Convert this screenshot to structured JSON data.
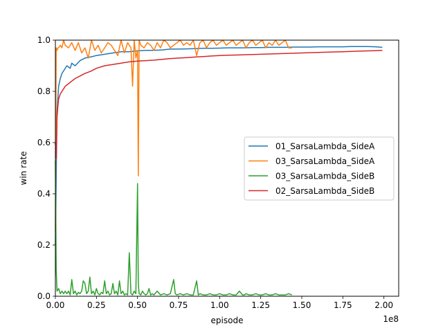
{
  "chart_data": {
    "type": "line",
    "title": "",
    "xlabel": "episode",
    "ylabel": "win rate",
    "x_offset_label": "1e8",
    "xlim": [
      0,
      2.09
    ],
    "ylim": [
      0,
      1.0
    ],
    "x_tick_values": [
      0,
      0.25,
      0.5,
      0.75,
      1.0,
      1.25,
      1.5,
      1.75,
      2.0
    ],
    "x_tick_labels": [
      "0.00",
      "0.25",
      "0.50",
      "0.75",
      "1.00",
      "1.25",
      "1.50",
      "1.75",
      "2.00"
    ],
    "y_tick_values": [
      0,
      0.2,
      0.4,
      0.6,
      0.8,
      1.0
    ],
    "y_tick_labels": [
      "0.0",
      "0.2",
      "0.4",
      "0.6",
      "0.8",
      "1.0"
    ],
    "grid": false,
    "legend_position": "center-right",
    "series": [
      {
        "name": "01_SarsaLambda_SideA",
        "color": "#1f77b4",
        "x": [
          0.0,
          0.01,
          0.02,
          0.03,
          0.04,
          0.05,
          0.07,
          0.09,
          0.1,
          0.12,
          0.15,
          0.18,
          0.22,
          0.25,
          0.3,
          0.35,
          0.4,
          0.45,
          0.5,
          0.55,
          0.6,
          0.65,
          0.7,
          0.75,
          0.8,
          0.85,
          0.9,
          0.95,
          1.0,
          1.05,
          1.1,
          1.15,
          1.2,
          1.25,
          1.3,
          1.35,
          1.4,
          1.45,
          1.5,
          1.55,
          1.6,
          1.65,
          1.7,
          1.75,
          1.8,
          1.85,
          1.9,
          1.95,
          1.99
        ],
        "y": [
          0.2,
          0.72,
          0.82,
          0.85,
          0.87,
          0.88,
          0.9,
          0.89,
          0.91,
          0.9,
          0.92,
          0.93,
          0.935,
          0.94,
          0.945,
          0.95,
          0.955,
          0.955,
          0.958,
          0.96,
          0.96,
          0.962,
          0.965,
          0.965,
          0.966,
          0.967,
          0.968,
          0.968,
          0.969,
          0.97,
          0.97,
          0.97,
          0.971,
          0.971,
          0.972,
          0.972,
          0.972,
          0.973,
          0.973,
          0.973,
          0.974,
          0.974,
          0.974,
          0.974,
          0.975,
          0.975,
          0.975,
          0.974,
          0.972
        ]
      },
      {
        "name": "03_SarsaLambda_SideA",
        "color": "#ff7f0e",
        "x": [
          0.0,
          0.005,
          0.01,
          0.015,
          0.02,
          0.03,
          0.04,
          0.05,
          0.06,
          0.08,
          0.1,
          0.12,
          0.14,
          0.16,
          0.18,
          0.2,
          0.22,
          0.24,
          0.26,
          0.28,
          0.3,
          0.32,
          0.34,
          0.36,
          0.38,
          0.4,
          0.42,
          0.44,
          0.46,
          0.47,
          0.48,
          0.49,
          0.5,
          0.505,
          0.51,
          0.52,
          0.54,
          0.56,
          0.58,
          0.6,
          0.62,
          0.64,
          0.66,
          0.68,
          0.7,
          0.72,
          0.74,
          0.76,
          0.78,
          0.8,
          0.82,
          0.84,
          0.86,
          0.88,
          0.9,
          0.92,
          0.94,
          0.96,
          0.98,
          1.0,
          1.02,
          1.04,
          1.06,
          1.08,
          1.1,
          1.12,
          1.14,
          1.16,
          1.18,
          1.2,
          1.22,
          1.24,
          1.26,
          1.28,
          1.3,
          1.32,
          1.34,
          1.36,
          1.38,
          1.4,
          1.42,
          1.44
        ],
        "y": [
          0.25,
          0.97,
          0.96,
          0.97,
          0.97,
          0.98,
          0.97,
          1.0,
          0.98,
          0.97,
          0.99,
          0.96,
          0.99,
          0.95,
          0.97,
          0.93,
          1.0,
          0.96,
          0.98,
          0.95,
          0.97,
          0.99,
          0.98,
          0.96,
          0.94,
          1.0,
          0.95,
          0.99,
          0.97,
          0.82,
          1.0,
          0.93,
          0.96,
          0.47,
          1.0,
          0.98,
          0.97,
          0.99,
          0.98,
          0.96,
          0.99,
          0.97,
          1.0,
          0.99,
          0.97,
          0.98,
          0.99,
          1.0,
          0.98,
          0.99,
          0.98,
          1.0,
          0.94,
          0.99,
          1.0,
          0.97,
          0.99,
          1.0,
          0.98,
          0.99,
          1.0,
          0.98,
          0.99,
          1.0,
          0.98,
          0.99,
          1.0,
          0.97,
          0.99,
          1.0,
          0.98,
          0.99,
          1.0,
          0.97,
          0.99,
          0.98,
          1.0,
          0.98,
          0.99,
          1.0,
          0.97,
          0.97
        ]
      },
      {
        "name": "03_SarsaLambda_SideB",
        "color": "#2ca02c",
        "x": [
          0.0,
          0.005,
          0.01,
          0.02,
          0.03,
          0.04,
          0.05,
          0.06,
          0.07,
          0.08,
          0.09,
          0.1,
          0.11,
          0.12,
          0.13,
          0.14,
          0.15,
          0.16,
          0.17,
          0.18,
          0.19,
          0.2,
          0.21,
          0.22,
          0.23,
          0.24,
          0.25,
          0.26,
          0.27,
          0.28,
          0.29,
          0.3,
          0.31,
          0.32,
          0.33,
          0.34,
          0.35,
          0.36,
          0.37,
          0.38,
          0.39,
          0.4,
          0.41,
          0.42,
          0.43,
          0.44,
          0.45,
          0.46,
          0.47,
          0.48,
          0.49,
          0.5,
          0.505,
          0.51,
          0.52,
          0.53,
          0.54,
          0.55,
          0.56,
          0.57,
          0.58,
          0.59,
          0.6,
          0.62,
          0.64,
          0.66,
          0.68,
          0.7,
          0.72,
          0.73,
          0.74,
          0.76,
          0.78,
          0.8,
          0.82,
          0.84,
          0.86,
          0.87,
          0.88,
          0.9,
          0.92,
          0.94,
          0.96,
          0.98,
          1.0,
          1.02,
          1.04,
          1.06,
          1.08,
          1.1,
          1.12,
          1.14,
          1.15,
          1.16,
          1.18,
          1.2,
          1.22,
          1.24,
          1.26,
          1.28,
          1.3,
          1.32,
          1.34,
          1.36,
          1.38,
          1.4,
          1.42,
          1.44
        ],
        "y": [
          0.53,
          0.1,
          0.02,
          0.03,
          0.01,
          0.02,
          0.01,
          0.02,
          0.01,
          0.02,
          0.005,
          0.065,
          0.01,
          0.02,
          0.005,
          0.015,
          0.01,
          0.02,
          0.06,
          0.05,
          0.01,
          0.02,
          0.075,
          0.01,
          0.02,
          0.005,
          0.03,
          0.01,
          0.005,
          0.015,
          0.01,
          0.06,
          0.01,
          0.02,
          0.005,
          0.01,
          0.05,
          0.01,
          0.02,
          0.005,
          0.06,
          0.01,
          0.02,
          0.005,
          0.01,
          0.005,
          0.17,
          0.01,
          0.005,
          0.02,
          0.01,
          0.44,
          0.05,
          0.01,
          0.005,
          0.02,
          0.01,
          0.005,
          0.01,
          0.03,
          0.005,
          0.01,
          0.005,
          0.02,
          0.005,
          0.01,
          0.005,
          0.01,
          0.065,
          0.01,
          0.005,
          0.01,
          0.005,
          0.01,
          0.005,
          0.005,
          0.06,
          0.005,
          0.01,
          0.005,
          0.005,
          0.01,
          0.005,
          0.005,
          0.01,
          0.005,
          0.005,
          0.01,
          0.005,
          0.005,
          0.02,
          0.005,
          0.005,
          0.01,
          0.005,
          0.005,
          0.01,
          0.005,
          0.005,
          0.01,
          0.005,
          0.005,
          0.01,
          0.005,
          0.005,
          0.005,
          0.01,
          0.005
        ]
      },
      {
        "name": "02_SarsaLambda_SideB",
        "color": "#d62728",
        "x": [
          0.0,
          0.005,
          0.01,
          0.015,
          0.02,
          0.03,
          0.04,
          0.05,
          0.06,
          0.08,
          0.1,
          0.12,
          0.15,
          0.18,
          0.2,
          0.22,
          0.25,
          0.3,
          0.35,
          0.4,
          0.45,
          0.5,
          0.55,
          0.6,
          0.65,
          0.7,
          0.75,
          0.8,
          0.85,
          0.9,
          0.95,
          1.0,
          1.05,
          1.1,
          1.15,
          1.2,
          1.25,
          1.3,
          1.35,
          1.4,
          1.45,
          1.5,
          1.55,
          1.6,
          1.65,
          1.7,
          1.75,
          1.8,
          1.85,
          1.9,
          1.95,
          1.99
        ],
        "y": [
          0.6,
          0.54,
          0.7,
          0.74,
          0.77,
          0.79,
          0.8,
          0.81,
          0.82,
          0.83,
          0.84,
          0.85,
          0.86,
          0.87,
          0.875,
          0.88,
          0.89,
          0.9,
          0.905,
          0.91,
          0.915,
          0.918,
          0.92,
          0.922,
          0.925,
          0.928,
          0.93,
          0.932,
          0.934,
          0.936,
          0.938,
          0.94,
          0.941,
          0.942,
          0.943,
          0.944,
          0.945,
          0.946,
          0.947,
          0.948,
          0.949,
          0.95,
          0.951,
          0.952,
          0.953,
          0.954,
          0.955,
          0.956,
          0.957,
          0.958,
          0.959,
          0.96
        ]
      }
    ]
  }
}
